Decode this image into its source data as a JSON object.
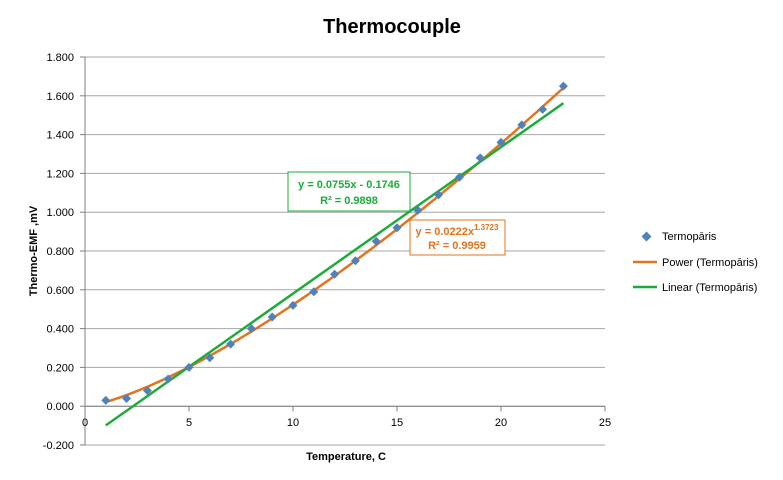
{
  "chart_data": {
    "type": "scatter",
    "title": "Thermocouple",
    "xlabel": "Temperature, C",
    "ylabel": "Thermo-EMF ,mV",
    "xlim": [
      0,
      25
    ],
    "ylim": [
      -0.2,
      1.8
    ],
    "x_ticks": [
      "0",
      "5",
      "10",
      "15",
      "20",
      "25"
    ],
    "y_ticks": [
      "-0.200",
      "0.000",
      "0.200",
      "0.400",
      "0.600",
      "0.800",
      "1.000",
      "1.200",
      "1.400",
      "1.600",
      "1.800"
    ],
    "grid": "horizontal",
    "legend_position": "right",
    "series": [
      {
        "name": "Termopāris",
        "kind": "scatter",
        "marker": "diamond",
        "color": "#4f81bd",
        "x": [
          1,
          2,
          3,
          4,
          5,
          6,
          7,
          8,
          9,
          10,
          11,
          12,
          13,
          14,
          15,
          16,
          17,
          18,
          19,
          20,
          21,
          22,
          23
        ],
        "y": [
          0.03,
          0.04,
          0.08,
          0.14,
          0.2,
          0.25,
          0.32,
          0.4,
          0.46,
          0.52,
          0.59,
          0.68,
          0.75,
          0.85,
          0.92,
          1.01,
          1.09,
          1.18,
          1.28,
          1.36,
          1.45,
          1.53,
          1.65
        ]
      }
    ],
    "trendlines": [
      {
        "name": "Power (Termopāris)",
        "type": "power",
        "color": "#e2741f",
        "coefficient": 0.0222,
        "exponent": 1.3723,
        "x_range": [
          1,
          23
        ],
        "equation_prefix": "y = 0.0222x",
        "equation_exponent": "1.3723",
        "r2_label": "R² = 0.9959"
      },
      {
        "name": "Linear (Termopāris)",
        "type": "linear",
        "color": "#1fab3c",
        "slope": 0.0755,
        "intercept": -0.1746,
        "x_range": [
          1,
          23
        ],
        "equation": "y = 0.0755x - 0.1746",
        "r2_label": "R² = 0.9898"
      }
    ]
  }
}
